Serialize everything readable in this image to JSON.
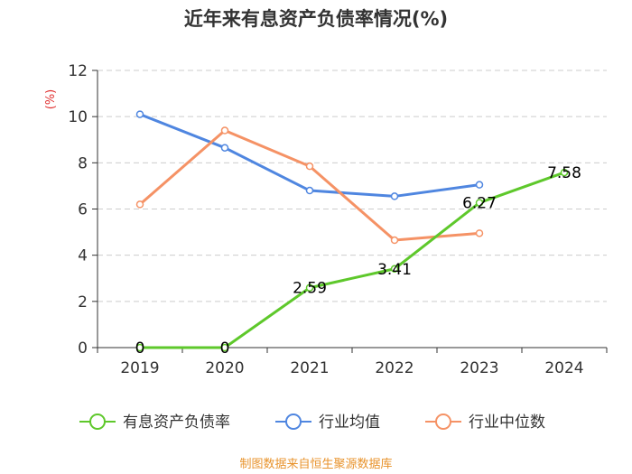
{
  "chart_data": {
    "type": "line",
    "title": "近年来有息资产负债率情况(%)",
    "unit_label": "(%)",
    "categories": [
      "2019",
      "2020",
      "2021",
      "2022",
      "2023",
      "2024"
    ],
    "ylim": [
      0,
      12
    ],
    "yticks": [
      "0",
      "2",
      "4",
      "6",
      "8",
      "10",
      "12"
    ],
    "grid": true,
    "legend_position": "bottom",
    "series": [
      {
        "name": "有息资产负债率",
        "color": "#5ec82b",
        "values": [
          0,
          0,
          2.59,
          3.41,
          6.27,
          7.58
        ],
        "labels": [
          "0",
          "0",
          "2.59",
          "3.41",
          "6.27",
          "7.58"
        ]
      },
      {
        "name": "行业均值",
        "color": "#4f86e0",
        "values": [
          10.1,
          8.65,
          6.8,
          6.55,
          7.05,
          null
        ]
      },
      {
        "name": "行业中位数",
        "color": "#f59265",
        "values": [
          6.2,
          9.4,
          7.85,
          4.65,
          4.95,
          null
        ]
      }
    ],
    "source": "制图数据来自恒生聚源数据库"
  }
}
